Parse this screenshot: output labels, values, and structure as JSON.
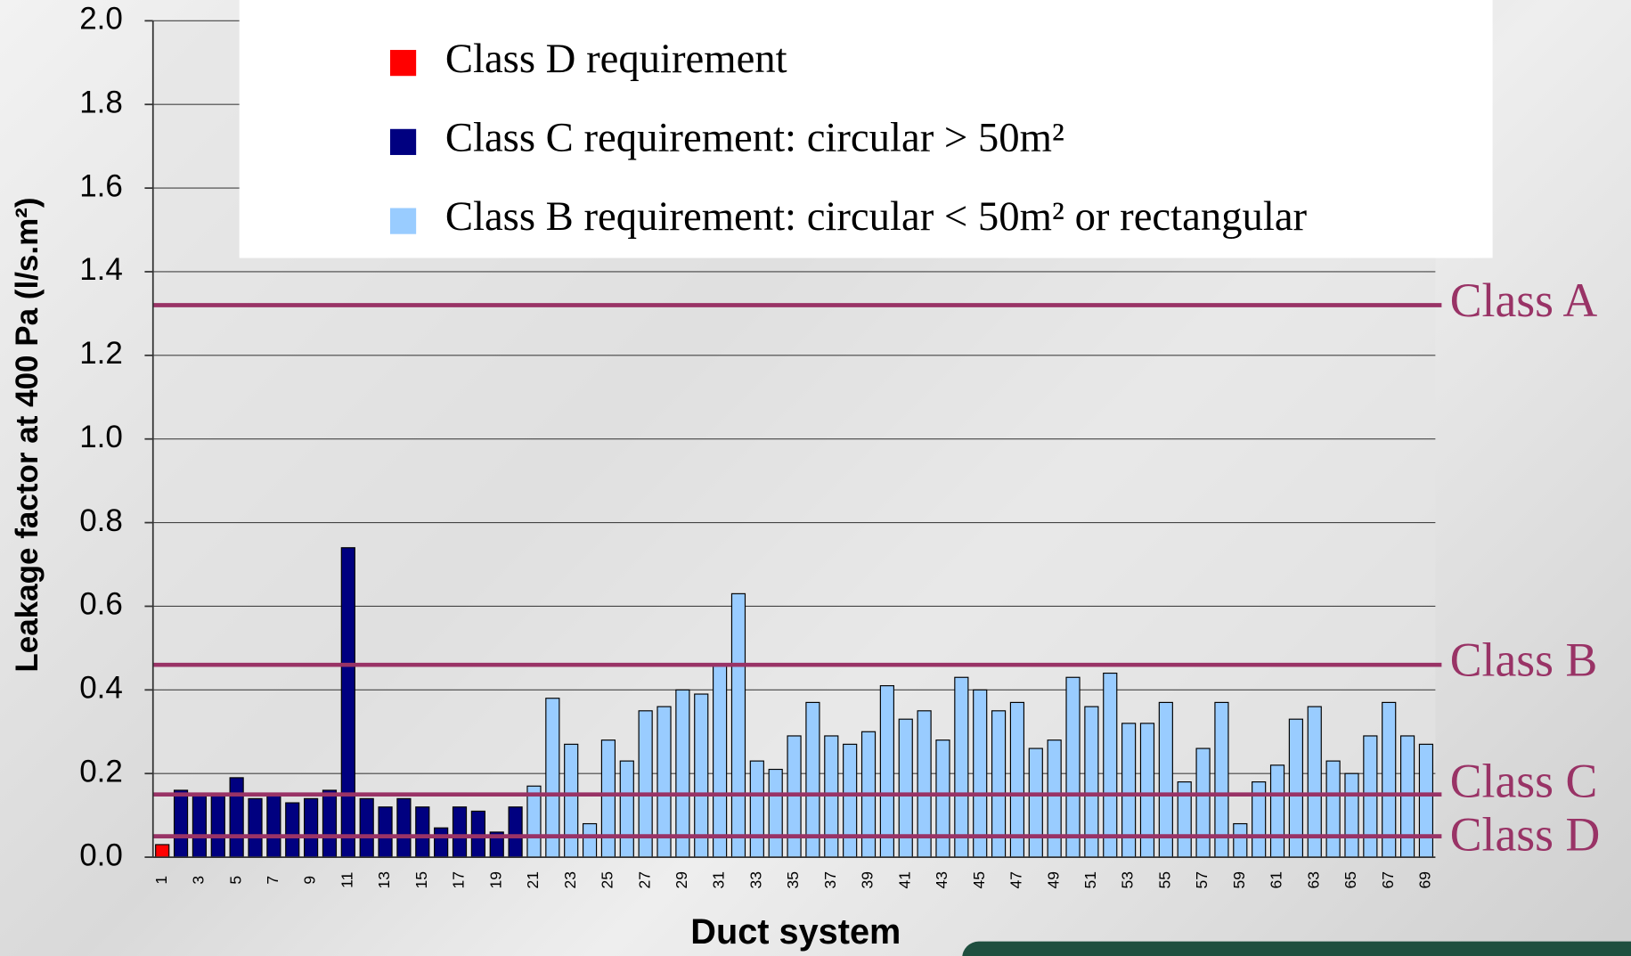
{
  "chart_data": {
    "type": "bar",
    "y_label": "Leakage factor at 400 Pa (l/s.m²)",
    "x_label": "Duct system",
    "categories": [
      "1",
      null,
      "3",
      null,
      "5",
      null,
      "7",
      null,
      "9",
      null,
      "11",
      null,
      "13",
      null,
      "15",
      null,
      "17",
      null,
      "19",
      null,
      "21",
      null,
      "23",
      null,
      "25",
      null,
      "27",
      null,
      "29",
      null,
      "31",
      null,
      "33",
      null,
      "35",
      null,
      "37",
      null,
      "39",
      null,
      "41",
      null,
      "43",
      null,
      "45",
      null,
      "47",
      null,
      "49",
      null,
      "51",
      null,
      "53",
      null,
      "55",
      null,
      "57",
      null,
      "59",
      null,
      "61",
      null,
      "63",
      null,
      "65",
      null,
      "67",
      null,
      "69"
    ],
    "series": [
      {
        "name": "Class D requirement",
        "color": "#ff0000",
        "values": [
          0.03,
          null,
          null,
          null,
          null,
          null,
          null,
          null,
          null,
          null,
          null,
          null,
          null,
          null,
          null,
          null,
          null,
          null,
          null,
          null,
          null,
          null,
          null,
          null,
          null,
          null,
          null,
          null,
          null,
          null,
          null,
          null,
          null,
          null,
          null,
          null,
          null,
          null,
          null,
          null,
          null,
          null,
          null,
          null,
          null,
          null,
          null,
          null,
          null,
          null,
          null,
          null,
          null,
          null,
          null,
          null,
          null,
          null,
          null,
          null,
          null,
          null,
          null,
          null,
          null,
          null,
          null,
          null,
          null
        ]
      },
      {
        "name": "Class C requirement: circular > 50m²",
        "color": "#000080",
        "values": [
          null,
          0.16,
          0.15,
          0.15,
          0.19,
          0.14,
          0.15,
          0.13,
          0.14,
          0.16,
          0.74,
          0.14,
          0.12,
          0.14,
          0.12,
          0.07,
          0.12,
          0.11,
          0.06,
          0.12,
          null,
          null,
          null,
          null,
          null,
          null,
          null,
          null,
          null,
          null,
          null,
          null,
          null,
          null,
          null,
          null,
          null,
          null,
          null,
          null,
          null,
          null,
          null,
          null,
          null,
          null,
          null,
          null,
          null,
          null,
          null,
          null,
          null,
          null,
          null,
          null,
          null,
          null,
          null,
          null,
          null,
          null,
          null,
          null,
          null,
          null,
          null,
          null,
          null
        ]
      },
      {
        "name": "Class B requirement: circular < 50m² or rectangular",
        "color": "#99ccff",
        "values": [
          null,
          null,
          null,
          null,
          null,
          null,
          null,
          null,
          null,
          null,
          null,
          null,
          null,
          null,
          null,
          null,
          null,
          null,
          null,
          null,
          0.17,
          0.38,
          0.27,
          0.08,
          0.28,
          0.23,
          0.35,
          0.36,
          0.4,
          0.39,
          0.46,
          0.63,
          0.23,
          0.21,
          0.29,
          0.37,
          0.29,
          0.27,
          0.3,
          0.41,
          0.33,
          0.35,
          0.28,
          0.43,
          0.4,
          0.35,
          0.37,
          0.26,
          0.28,
          0.43,
          0.36,
          0.44,
          0.32,
          0.32,
          0.37,
          0.18,
          0.26,
          0.37,
          0.08,
          0.18,
          0.22,
          0.33,
          0.36,
          0.23,
          0.2,
          0.29,
          0.37,
          0.29,
          0.27
        ]
      }
    ],
    "reference_lines": [
      {
        "label": "Class A",
        "value": 1.32,
        "color": "#993366"
      },
      {
        "label": "Class B",
        "value": 0.46,
        "color": "#993366"
      },
      {
        "label": "Class C",
        "value": 0.15,
        "color": "#993366"
      },
      {
        "label": "Class D",
        "value": 0.05,
        "color": "#993366"
      }
    ],
    "ylim": [
      0,
      2
    ],
    "yticks": [
      {
        "value": 0,
        "label": "0.0"
      },
      {
        "value": 0.2,
        "label": "0.2"
      },
      {
        "value": 0.4,
        "label": "0.4"
      },
      {
        "value": 0.6,
        "label": "0.6"
      },
      {
        "value": 0.8,
        "label": "0.8"
      },
      {
        "value": 1,
        "label": "1.0"
      },
      {
        "value": 1.2,
        "label": "1.2"
      },
      {
        "value": 1.4,
        "label": "1.4"
      },
      {
        "value": 1.6,
        "label": "1.6"
      },
      {
        "value": 1.8,
        "label": "1.8"
      },
      {
        "value": 2,
        "label": "2.0"
      }
    ],
    "grid": true
  }
}
